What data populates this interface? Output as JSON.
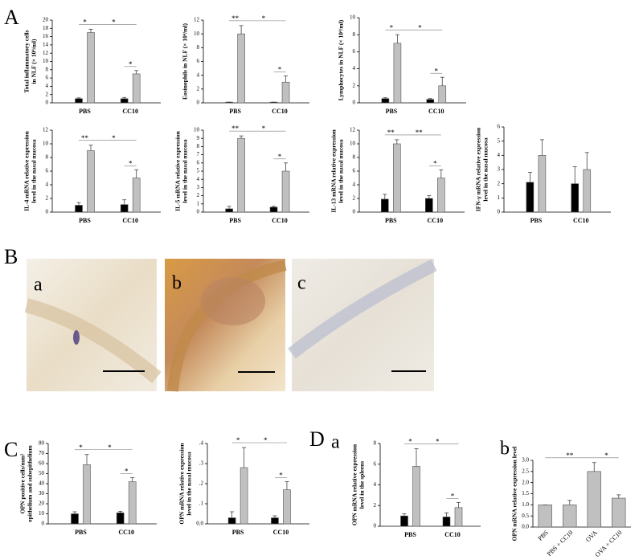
{
  "panel_labels": [
    "A",
    "B",
    "a",
    "b",
    "c",
    "C",
    "D",
    "a",
    "b"
  ],
  "chart_data": [
    {
      "type": "bar",
      "ylabel": [
        "Total inflammatory cells",
        "in NLF (× 10⁴/ml)"
      ],
      "categories": [
        "PBS",
        "CC10"
      ],
      "series": [
        {
          "color": "#000000",
          "values": [
            1,
            1
          ],
          "errors": [
            0.2,
            0.3
          ]
        },
        {
          "color": "#c0c0c0",
          "values": [
            17,
            7
          ],
          "errors": [
            0.8,
            0.8
          ]
        }
      ],
      "ylim": [
        0,
        20
      ],
      "yticks": [
        0,
        2,
        4,
        6,
        8,
        10,
        12,
        14,
        16,
        18,
        20
      ],
      "annotations": [
        "*",
        "*",
        "*"
      ]
    },
    {
      "type": "bar",
      "ylabel": [
        "Eosinophils in NLF (× 10⁴/ml)"
      ],
      "categories": [
        "PBS",
        "CC10"
      ],
      "series": [
        {
          "color": "#000000",
          "values": [
            0.1,
            0.1
          ],
          "errors": [
            0,
            0
          ]
        },
        {
          "color": "#c0c0c0",
          "values": [
            10,
            3
          ],
          "errors": [
            1.2,
            0.9
          ]
        }
      ],
      "ylim": [
        0,
        12
      ],
      "yticks": [
        0,
        2,
        4,
        6,
        8,
        10,
        12
      ],
      "annotations": [
        "**",
        "*",
        "*"
      ]
    },
    {
      "type": "bar",
      "ylabel": [
        "Lymphocytes in NLF (× 10⁴/ml)"
      ],
      "categories": [
        "PBS",
        "CC10"
      ],
      "series": [
        {
          "color": "#000000",
          "values": [
            0.5,
            0.4
          ],
          "errors": [
            0.1,
            0.1
          ]
        },
        {
          "color": "#c0c0c0",
          "values": [
            7,
            2
          ],
          "errors": [
            1,
            1
          ]
        }
      ],
      "ylim": [
        0,
        10
      ],
      "yticks": [
        0,
        2,
        4,
        6,
        8,
        10
      ],
      "annotations": [
        "*",
        "*",
        "*"
      ]
    },
    {
      "type": "bar",
      "ylabel": [
        "IL-4 mRNA relative expression",
        "level in the nasal mucosa"
      ],
      "categories": [
        "PBS",
        "CC10"
      ],
      "series": [
        {
          "color": "#000000",
          "values": [
            1,
            1.1
          ],
          "errors": [
            0.4,
            0.7
          ]
        },
        {
          "color": "#c0c0c0",
          "values": [
            9,
            5
          ],
          "errors": [
            0.8,
            1.2
          ]
        }
      ],
      "ylim": [
        0,
        12
      ],
      "yticks": [
        0,
        2,
        4,
        6,
        8,
        10,
        12
      ],
      "annotations": [
        "**",
        "*",
        "*"
      ]
    },
    {
      "type": "bar",
      "ylabel": [
        "IL-5 mRNA relative expression",
        "level in the nasal mucosa"
      ],
      "categories": [
        "PBS",
        "CC10"
      ],
      "series": [
        {
          "color": "#000000",
          "values": [
            0.4,
            0.6
          ],
          "errors": [
            0.3,
            0.1
          ]
        },
        {
          "color": "#c0c0c0",
          "values": [
            9,
            5
          ],
          "errors": [
            0.3,
            1
          ]
        }
      ],
      "ylim": [
        0,
        10
      ],
      "yticks": [
        0,
        1,
        2,
        3,
        4,
        5,
        6,
        7,
        8,
        9,
        10
      ],
      "annotations": [
        "**",
        "*",
        "*"
      ]
    },
    {
      "type": "bar",
      "ylabel": [
        "IL-13 mRNA relative expression",
        "level in the nasal mucosa"
      ],
      "categories": [
        "PBS",
        "CC10"
      ],
      "series": [
        {
          "color": "#000000",
          "values": [
            1.9,
            2
          ],
          "errors": [
            0.7,
            0.4
          ]
        },
        {
          "color": "#c0c0c0",
          "values": [
            10,
            5
          ],
          "errors": [
            0.6,
            1.2
          ]
        }
      ],
      "ylim": [
        0,
        12
      ],
      "yticks": [
        0,
        2,
        4,
        6,
        8,
        10,
        12
      ],
      "annotations": [
        "**",
        "**",
        "*"
      ]
    },
    {
      "type": "bar",
      "ylabel": [
        "IFN-γ mRNA relative expression",
        "level in the nasal mucosa"
      ],
      "categories": [
        "PBS",
        "CC10"
      ],
      "series": [
        {
          "color": "#000000",
          "values": [
            2.1,
            2
          ],
          "errors": [
            0.7,
            1.2
          ]
        },
        {
          "color": "#c0c0c0",
          "values": [
            4,
            3
          ],
          "errors": [
            1.1,
            1.2
          ]
        }
      ],
      "ylim": [
        0,
        6
      ],
      "yticks": [
        0,
        1,
        2,
        3,
        4,
        5,
        6
      ],
      "annotations": []
    },
    {
      "type": "bar",
      "ylabel": [
        "OPN positive cells/mm²",
        "epithelium and subepithelium"
      ],
      "categories": [
        "PBS",
        "CC10"
      ],
      "series": [
        {
          "color": "#000000",
          "values": [
            10,
            11
          ],
          "errors": [
            2,
            1.5
          ]
        },
        {
          "color": "#c0c0c0",
          "values": [
            59,
            42
          ],
          "errors": [
            10,
            4
          ]
        }
      ],
      "ylim": [
        0,
        80
      ],
      "yticks": [
        0,
        10,
        20,
        30,
        40,
        50,
        60,
        70,
        80
      ],
      "annotations": [
        "*",
        "*",
        "*"
      ]
    },
    {
      "type": "bar",
      "ylabel": [
        "OPN mRNA relative expression",
        "level in the nasal mucosa"
      ],
      "categories": [
        "PBS",
        "CC10"
      ],
      "series": [
        {
          "color": "#000000",
          "values": [
            0.03,
            0.03
          ],
          "errors": [
            0.03,
            0.01
          ]
        },
        {
          "color": "#c0c0c0",
          "values": [
            0.28,
            0.17
          ],
          "errors": [
            0.1,
            0.04
          ]
        }
      ],
      "ylim": [
        0,
        0.4
      ],
      "yticks": [
        {
          "value": 0,
          "label": "0.0"
        },
        {
          "value": 0.1,
          "label": ".1"
        },
        {
          "value": 0.2,
          "label": ".2"
        },
        {
          "value": 0.3,
          "label": ".3"
        },
        {
          "value": 0.4,
          "label": ".4"
        }
      ],
      "annotations": [
        "*",
        "*",
        "*"
      ]
    },
    {
      "type": "bar",
      "ylabel": [
        "OPN mRNA relative expression",
        "level in the spleens"
      ],
      "categories": [
        "PBS",
        "CC10"
      ],
      "series": [
        {
          "color": "#000000",
          "values": [
            1,
            0.9
          ],
          "errors": [
            0.2,
            0.4
          ]
        },
        {
          "color": "#c0c0c0",
          "values": [
            5.8,
            1.8
          ],
          "errors": [
            1.7,
            0.5
          ]
        }
      ],
      "ylim": [
        0,
        8
      ],
      "yticks": [
        0,
        2,
        4,
        6,
        8
      ],
      "annotations": [
        "*",
        "*",
        "*"
      ]
    },
    {
      "type": "bar",
      "ylabel": [
        "OPN mRNA relative expression level"
      ],
      "categories": [
        "PBS",
        "PBS + CC10",
        "OVA",
        "OVA + CC10"
      ],
      "series": [
        {
          "color": "#c0c0c0",
          "values": [
            1,
            1,
            2.5,
            1.3
          ],
          "errors": [
            0,
            0.2,
            0.4,
            0.15
          ]
        }
      ],
      "ylim": [
        0,
        3
      ],
      "yticks": [
        {
          "value": 0,
          "label": "0.0"
        },
        0.5,
        {
          "value": 1,
          "label": "1.0"
        },
        1.5,
        {
          "value": 2,
          "label": "2.0"
        },
        2.5,
        {
          "value": 3,
          "label": "3.0"
        }
      ],
      "annotations": [
        "**",
        "*"
      ]
    }
  ]
}
